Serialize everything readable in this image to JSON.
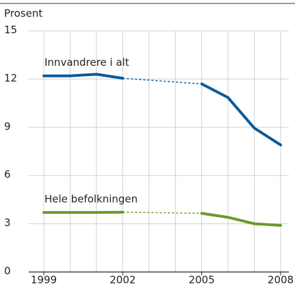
{
  "chart_data": {
    "type": "line",
    "ylabel": "Prosent",
    "x": [
      1999,
      2000,
      2001,
      2002,
      2003,
      2004,
      2005,
      2006,
      2007,
      2008
    ],
    "xlim": [
      1999,
      2008
    ],
    "xticks": [
      1999,
      2002,
      2005,
      2008
    ],
    "ylim": [
      0,
      15
    ],
    "yticks": [
      0,
      3,
      6,
      9,
      12,
      15
    ],
    "grid": true,
    "series": [
      {
        "name": "Innvandrere i alt",
        "color": "#0a5a9c",
        "values": [
          12.2,
          12.2,
          12.3,
          12.05,
          null,
          null,
          11.7,
          10.85,
          8.95,
          7.9
        ]
      },
      {
        "name": "Hele befolkningen",
        "color": "#6b9a2b",
        "values": [
          3.7,
          3.7,
          3.7,
          3.72,
          null,
          null,
          3.65,
          3.4,
          3.0,
          2.9
        ]
      }
    ]
  }
}
